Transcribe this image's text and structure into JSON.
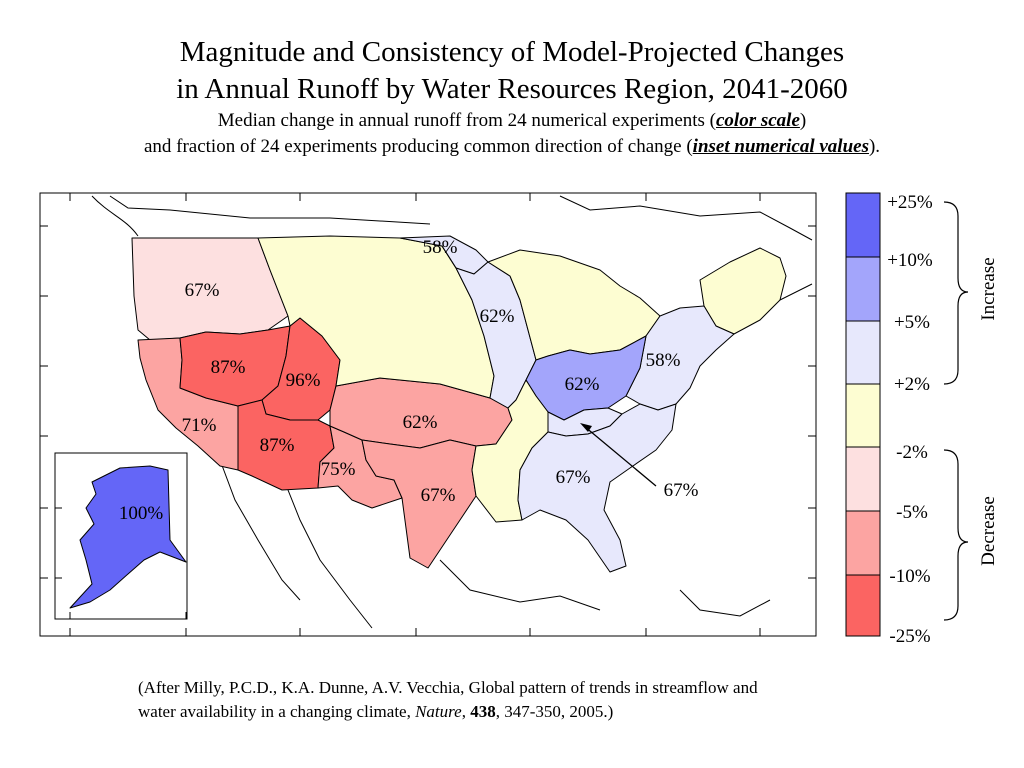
{
  "title": {
    "line1": "Magnitude and Consistency of Model-Projected Changes",
    "line2": "in Annual Runoff by Water Resources Region, 2041-2060",
    "sub1_prefix": "Median change in annual runoff from 24 numerical experiments (",
    "sub1_em": "color scale",
    "sub1_suffix": ")",
    "sub2_prefix": "and fraction of 24 experiments producing common direction of change (",
    "sub2_em": "inset numerical values",
    "sub2_suffix": ")."
  },
  "colors": {
    "inc_high": "#6466f7",
    "inc_mid": "#a3a5fb",
    "inc_low": "#e7e8fc",
    "neutral": "#fdfdd2",
    "dec_low": "#fde0e0",
    "dec_mid": "#fca4a2",
    "dec_high": "#fb6462"
  },
  "regions": [
    {
      "name": "Pacific Northwest",
      "label": "67%",
      "class": "dec_low"
    },
    {
      "name": "California",
      "label": "71%",
      "class": "dec_mid"
    },
    {
      "name": "Great Basin",
      "label": "87%",
      "class": "dec_high"
    },
    {
      "name": "Upper Colorado",
      "label": "96%",
      "class": "dec_high"
    },
    {
      "name": "Lower Colorado",
      "label": "87%",
      "class": "dec_high"
    },
    {
      "name": "Rio Grande",
      "label": "75%",
      "class": "dec_mid"
    },
    {
      "name": "Arkansas-White-Red",
      "label": "62%",
      "class": "dec_mid"
    },
    {
      "name": "Texas-Gulf",
      "label": "67%",
      "class": "dec_mid"
    },
    {
      "name": "Missouri",
      "label": "",
      "class": "neutral"
    },
    {
      "name": "Souris-Red-Rainy",
      "label": "58%",
      "class": "inc_low"
    },
    {
      "name": "Upper Mississippi",
      "label": "62%",
      "class": "inc_low"
    },
    {
      "name": "Great Lakes",
      "label": "",
      "class": "neutral"
    },
    {
      "name": "New England",
      "label": "",
      "class": "neutral"
    },
    {
      "name": "Mid-Atlantic",
      "label": "58%",
      "class": "inc_low"
    },
    {
      "name": "Ohio",
      "label": "62%",
      "class": "inc_mid"
    },
    {
      "name": "Tennessee",
      "label": "67%",
      "class": "inc_low"
    },
    {
      "name": "Lower Mississippi",
      "label": "",
      "class": "neutral"
    },
    {
      "name": "South Atlantic-Gulf",
      "label": "67%",
      "class": "inc_low"
    },
    {
      "name": "Alaska",
      "label": "100%",
      "class": "inc_high"
    }
  ],
  "legend": {
    "ticks": [
      "+25%",
      "+10%",
      "+5%",
      "+2%",
      "-2%",
      "-5%",
      "-10%",
      "-25%"
    ],
    "increase": "Increase",
    "decrease": "Decrease"
  },
  "citation": {
    "line1": "(After Milly, P.C.D., K.A. Dunne, A.V. Vecchia, Global pattern of trends in streamflow and",
    "line2_prefix": "water availability in a changing climate, ",
    "journal": "Nature",
    "sep1": ", ",
    "volume": "438",
    "line2_suffix": ", 347-350, 2005.)"
  }
}
